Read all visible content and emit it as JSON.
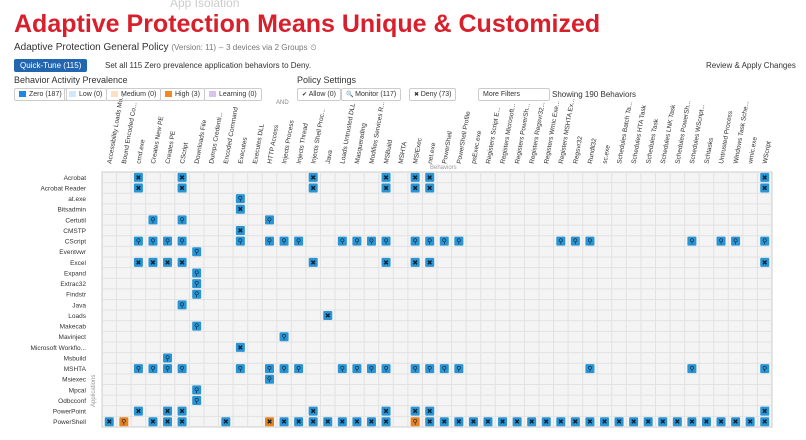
{
  "header": {
    "title": "Adaptive Protection Means Unique & Customized",
    "faded_tab": "App Isolation"
  },
  "policy": {
    "name": "Adaptive Protection General Policy",
    "version": "(Version: 11)",
    "devices": "3 devices via 2 Groups",
    "quick_tune": "Quick-Tune (115)",
    "quick_tune_note": "Set all 115 Zero prevalence application behaviors to Deny.",
    "review": "Review & Apply Changes"
  },
  "filters": {
    "prevalence_label": "Behavior Activity Prevalence",
    "prevalence": [
      "Zero (187)",
      "Low (0)",
      "Medium (0)",
      "High (3)",
      "Learning (0)"
    ],
    "and": "AND",
    "settings_label": "Policy Settings",
    "settings": [
      "Allow (0)",
      "Monitor (117)",
      "Deny (73)"
    ],
    "more": "More Filters",
    "showing": "Showing 190 Behaviors"
  },
  "matrix": {
    "x_label": "Behaviors",
    "y_label": "Applications",
    "behaviors": [
      "Accessibility Loads Mo...",
      "Bound Encoded Co...",
      "cmd.exe",
      "Creates New PE",
      "Creates PE",
      "CScript",
      "Downloads File",
      "Dumps Credenti...",
      "Encoded Command",
      "Executes",
      "Executes DLL",
      "HTTP Access",
      "Injects Process",
      "Injects Thread",
      "Injects Shell Proc...",
      "Java",
      "Loads Untrusted DLL",
      "Masquerading",
      "Modifies Services R...",
      "MSBuild",
      "MSHTA",
      "MSIExec",
      "net.exe",
      "PowerShell",
      "PowerShell Profile",
      "psExec.exe",
      "Registers Script E...",
      "Registers Microsoft...",
      "Registers PowerSh...",
      "Registers Regsvr32...",
      "Registers Wmic Exe...",
      "Registers MSHTA Ex...",
      "Regsvr32",
      "Rundll32",
      "sc.exe",
      "Schedules Batch Ta...",
      "Schedules HTA Task",
      "Schedules Task",
      "Schedules LNK Task",
      "Schedules PowerSh...",
      "Schedules WScript...",
      "Schtasks",
      "Untrusted Process",
      "Windows Task Sche...",
      "wmic.exe",
      "WScript"
    ],
    "applications": [
      "Acrobat",
      "Acrobat Reader",
      "at.exe",
      "Bitsadmin",
      "Certutil",
      "CMSTP",
      "CScript",
      "Eventvwr",
      "Excel",
      "Expand",
      "Extrac32",
      "Findstr",
      "Java",
      "Loads",
      "Makecab",
      "Mavinject",
      "Microsoft Workflo...",
      "Msbuild",
      "MSHTA",
      "Msiexec",
      "Mpcal",
      "Odbcconf",
      "PowerPoint",
      "PowerShell"
    ]
  }
}
